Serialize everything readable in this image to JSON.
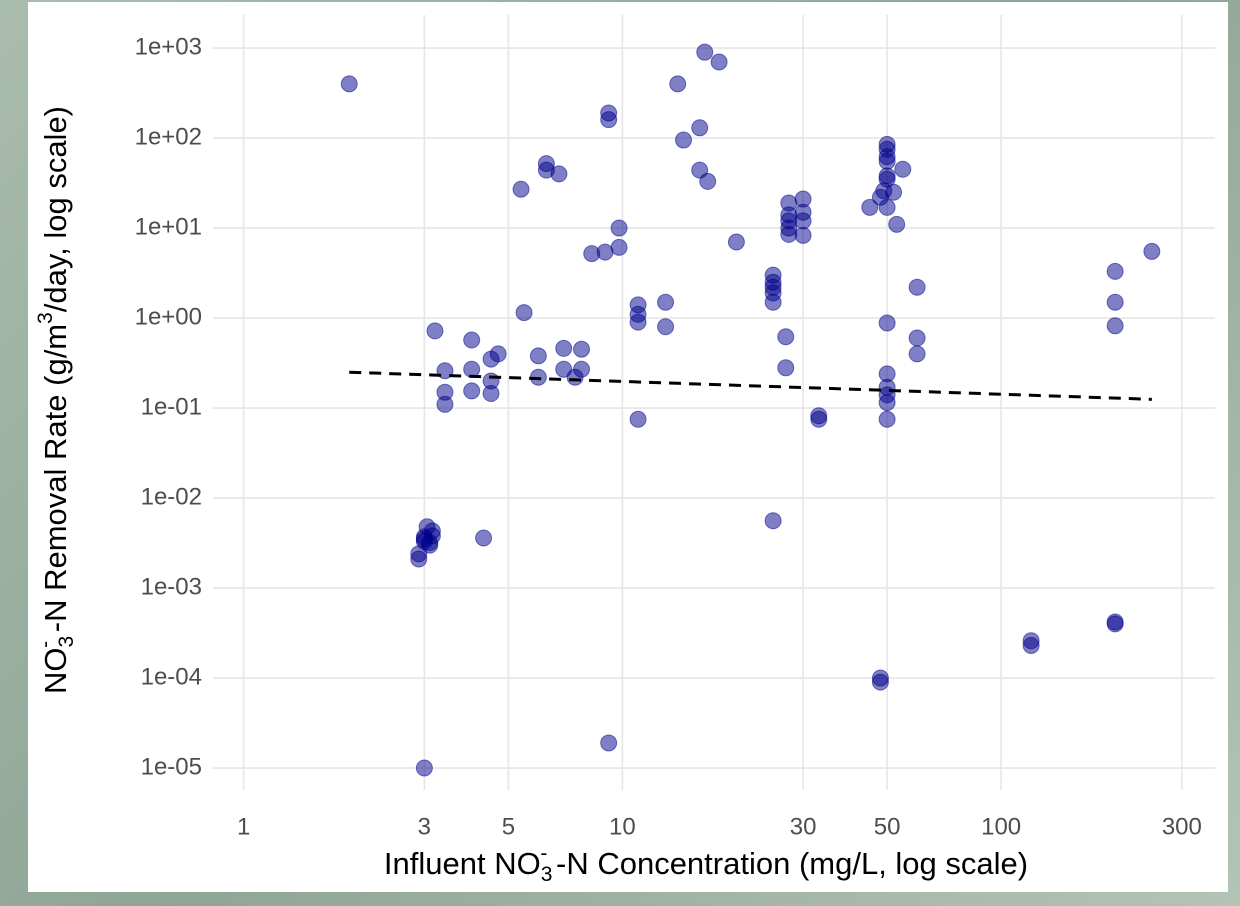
{
  "chart_data": {
    "type": "scatter",
    "xlabel_parts": [
      {
        "text": "Influent NO"
      },
      {
        "text": "3",
        "shift": "sub"
      },
      {
        "text": "-",
        "shift": "sup"
      },
      {
        "text": " -N Concentration (mg/L, log scale)"
      }
    ],
    "ylabel_parts": [
      {
        "text": "NO"
      },
      {
        "text": "3",
        "shift": "sub"
      },
      {
        "text": "-",
        "shift": "sup"
      },
      {
        "text": " -N Removal Rate (g/m"
      },
      {
        "text": "3",
        "shift": "sup"
      },
      {
        "text": "/day, log scale)"
      }
    ],
    "x_log": true,
    "y_log": true,
    "grid": true,
    "xlim": [
      0.83,
      367
    ],
    "ylim": [
      5.7e-06,
      2330
    ],
    "xticks": [
      1,
      3,
      5,
      10,
      30,
      50,
      100,
      300
    ],
    "yticks": [
      {
        "value": 1e-05,
        "label": "1e-05"
      },
      {
        "value": 0.0001,
        "label": "1e-04"
      },
      {
        "value": 0.001,
        "label": "1e-03"
      },
      {
        "value": 0.01,
        "label": "1e-02"
      },
      {
        "value": 0.1,
        "label": "1e-01"
      },
      {
        "value": 1,
        "label": "1e+00"
      },
      {
        "value": 10,
        "label": "1e+01"
      },
      {
        "value": 100,
        "label": "1e+02"
      },
      {
        "value": 1000,
        "label": "1e+03"
      }
    ],
    "color": "#00008b",
    "opacity": 0.5,
    "x": [
      1.9,
      2.9,
      2.9,
      3,
      3,
      3.05,
      3.1,
      3.15,
      3.15,
      3,
      3.1,
      3,
      3.2,
      3.4,
      3.4,
      3.4,
      4,
      4,
      4,
      4.5,
      4.5,
      4.5,
      4.7,
      4.3,
      5.5,
      5.4,
      6,
      6,
      6.3,
      6.3,
      6.8,
      7,
      7,
      7.5,
      7.8,
      7.8,
      8.3,
      9,
      9.2,
      9.2,
      9.2,
      9.8,
      9.8,
      11,
      11,
      11,
      11,
      13,
      13,
      14,
      14.5,
      16,
      16,
      16.5,
      16.8,
      18,
      20,
      25,
      25,
      25,
      25,
      25,
      25,
      27,
      27,
      27.5,
      27.5,
      27.5,
      27.5,
      27.5,
      30,
      30,
      30,
      30,
      33,
      33,
      45,
      48,
      48,
      48,
      49,
      50,
      50,
      50,
      50,
      50,
      50,
      50,
      50,
      50,
      50,
      50,
      50,
      50,
      52,
      53,
      55,
      60,
      60,
      60,
      120,
      120,
      200,
      200,
      200,
      200,
      200,
      250
    ],
    "values": [
      400,
      0.0024,
      0.0021,
      0.0037,
      0.0033,
      0.0048,
      0.003,
      0.0043,
      0.0038,
      0.0035,
      0.0032,
      1e-05,
      0.72,
      0.26,
      0.15,
      0.11,
      0.57,
      0.27,
      0.155,
      0.35,
      0.2,
      0.145,
      0.4,
      0.0036,
      1.15,
      27,
      0.38,
      0.22,
      52,
      44,
      40,
      0.46,
      0.27,
      0.22,
      0.45,
      0.27,
      5.2,
      5.4,
      190,
      160,
      1.9e-05,
      10,
      6.1,
      1.4,
      1.1,
      0.9,
      0.075,
      1.5,
      0.8,
      400,
      95,
      130,
      44,
      900,
      33,
      700,
      7,
      3,
      2.5,
      2.2,
      1.9,
      1.5,
      0.0056,
      0.62,
      0.28,
      19,
      14,
      12,
      10,
      8.5,
      21,
      15,
      12,
      8.3,
      0.082,
      0.075,
      17,
      22,
      0.0001,
      9e-05,
      26,
      85,
      75,
      62,
      55,
      38,
      35,
      17,
      0.88,
      0.24,
      0.17,
      0.14,
      0.115,
      0.075,
      25,
      11,
      45,
      2.2,
      0.6,
      0.4,
      0.00026,
      0.00023,
      3.3,
      1.5,
      0.82,
      0.00042,
      0.0004,
      5.5
    ],
    "trend_line": {
      "x": [
        1.9,
        250
      ],
      "values": [
        0.25,
        0.125
      ],
      "color": "#000000",
      "dashed": true
    }
  }
}
